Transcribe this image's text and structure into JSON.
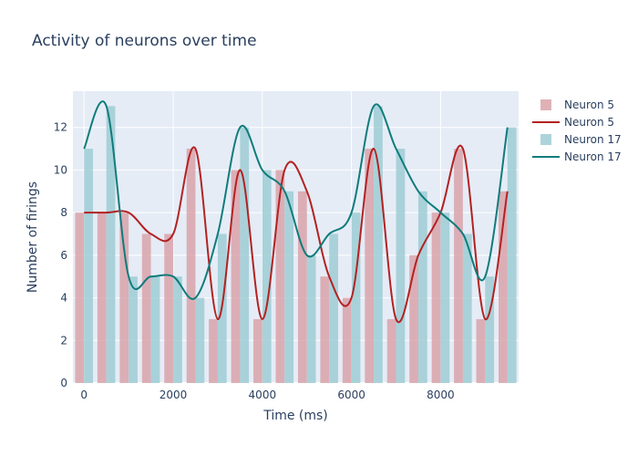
{
  "chart_data": {
    "type": "bar",
    "title": "Activity of neurons over time",
    "xlabel": "Time (ms)",
    "ylabel": "Number of firings",
    "x": [
      0,
      500,
      1000,
      1500,
      2000,
      2500,
      3000,
      3500,
      4000,
      4500,
      5000,
      5500,
      6000,
      6500,
      7000,
      7500,
      8000,
      8500,
      9000,
      9500
    ],
    "xlim": [
      -250,
      9750
    ],
    "ylim": [
      0,
      13.7
    ],
    "xticks": [
      0,
      2000,
      4000,
      6000,
      8000
    ],
    "yticks": [
      0,
      2,
      4,
      6,
      8,
      10,
      12
    ],
    "grid": true,
    "legend_position": "top-right",
    "series": [
      {
        "name": "Neuron 5",
        "kind": "bar",
        "values": [
          8,
          8,
          8,
          7,
          7,
          11,
          3,
          10,
          3,
          10,
          9,
          5,
          4,
          11,
          3,
          6,
          8,
          11,
          3,
          9
        ],
        "color": "#d9a3aa"
      },
      {
        "name": "Neuron 5",
        "kind": "line",
        "values": [
          8,
          8,
          8,
          7,
          7,
          11,
          3,
          10,
          3,
          10,
          9,
          5,
          4,
          11,
          3,
          6,
          8,
          11,
          3,
          9
        ],
        "color": "#b22222"
      },
      {
        "name": "Neuron 17",
        "kind": "bar",
        "values": [
          11,
          13,
          5,
          5,
          5,
          4,
          7,
          12,
          10,
          9,
          6,
          7,
          8,
          13,
          11,
          9,
          8,
          7,
          5,
          12
        ],
        "color": "#9fcdd3"
      },
      {
        "name": "Neuron 17",
        "kind": "line",
        "values": [
          11,
          13,
          5,
          5,
          5,
          4,
          7,
          12,
          10,
          9,
          6,
          7,
          8,
          13,
          11,
          9,
          8,
          7,
          5,
          12
        ],
        "color": "#0e7c7b"
      }
    ]
  },
  "colors": {
    "plot_bg": "#e5ecf6",
    "grid": "#ffffff",
    "text": "#2a3f5f"
  }
}
